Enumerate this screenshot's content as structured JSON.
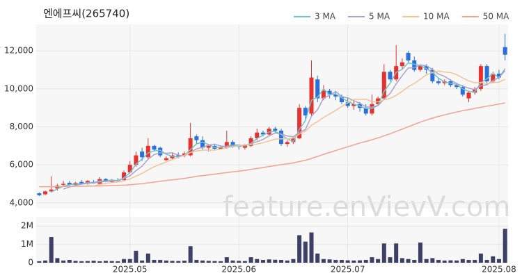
{
  "chart_data": {
    "type": "candlestick",
    "title": "엔에프씨(265740)",
    "watermark": "feature.enVievV.com",
    "up_color": "#e8312e",
    "down_color": "#2a6fdb",
    "categories": [
      null,
      null,
      null,
      null,
      null,
      null,
      null,
      null,
      null,
      null,
      null,
      null,
      null,
      null,
      null,
      "2025.05",
      null,
      null,
      null,
      null,
      null,
      null,
      null,
      null,
      null,
      null,
      null,
      null,
      null,
      null,
      null,
      null,
      null,
      "2025.06",
      null,
      null,
      null,
      null,
      null,
      null,
      null,
      null,
      null,
      null,
      null,
      null,
      null,
      null,
      null,
      null,
      null,
      "2025.07",
      null,
      null,
      null,
      null,
      null,
      null,
      null,
      null,
      null,
      null,
      null,
      null,
      null,
      null,
      null,
      null,
      null,
      null,
      null,
      null,
      null,
      null,
      null,
      null,
      "2025.08",
      null
    ],
    "open": [
      4500,
      4450,
      4600,
      4750,
      4950,
      5050,
      4950,
      5100,
      5000,
      5100,
      5000,
      5250,
      5100,
      5200,
      5200,
      5600,
      6000,
      6700,
      6400,
      7000,
      6900,
      6250,
      6350,
      6500,
      6500,
      6500,
      7500,
      7300,
      6900,
      7000,
      6850,
      6900,
      7200,
      7000,
      6900,
      7000,
      7400,
      7700,
      7600,
      7900,
      7800,
      7100,
      7200,
      7400,
      9000,
      8700,
      10500,
      9500,
      9900,
      9700,
      9600,
      9300,
      9100,
      9200,
      9000,
      8700,
      9200,
      9500,
      10900,
      10500,
      11200,
      11900,
      11500,
      11000,
      11200,
      11000,
      10400,
      10300,
      10400,
      10200,
      10100,
      9500,
      9800,
      10000,
      11200,
      10400,
      10800,
      12200
    ],
    "high": [
      4550,
      4650,
      5400,
      5000,
      5150,
      5150,
      5100,
      5200,
      5200,
      5200,
      5350,
      5300,
      5250,
      5300,
      5700,
      6200,
      6700,
      6900,
      7400,
      7050,
      6950,
      6450,
      6600,
      6650,
      6700,
      8200,
      7600,
      7500,
      7100,
      7100,
      7000,
      7800,
      7300,
      7050,
      7100,
      7500,
      7900,
      7800,
      8000,
      8000,
      7900,
      7300,
      7500,
      9200,
      9100,
      11500,
      10700,
      10200,
      10000,
      9900,
      9700,
      9500,
      9400,
      9300,
      9200,
      9700,
      9600,
      11300,
      11000,
      12300,
      11600,
      12000,
      11700,
      11300,
      11300,
      11100,
      10600,
      10500,
      10500,
      10300,
      10200,
      9900,
      10100,
      11300,
      11300,
      10900,
      11000,
      12900
    ],
    "low": [
      4350,
      4400,
      4550,
      4650,
      4850,
      4900,
      4900,
      5000,
      4950,
      5000,
      4950,
      5100,
      5050,
      5100,
      5150,
      5550,
      5900,
      6200,
      6300,
      6700,
      6400,
      6200,
      6300,
      6350,
      6400,
      6450,
      7100,
      6800,
      6700,
      6750,
      6800,
      6850,
      6900,
      6800,
      6800,
      6950,
      7300,
      7500,
      7550,
      7700,
      7000,
      6950,
      7100,
      7350,
      8400,
      8600,
      9300,
      9400,
      9500,
      9400,
      9200,
      9000,
      8900,
      8800,
      8600,
      8600,
      9100,
      9400,
      10400,
      10400,
      11000,
      11400,
      10900,
      10900,
      10800,
      10300,
      10200,
      10200,
      10100,
      10000,
      9600,
      9300,
      9700,
      9900,
      10300,
      10300,
      10500,
      11500
    ],
    "close": [
      4400,
      4600,
      4700,
      4900,
      5000,
      4950,
      5050,
      5000,
      5150,
      5050,
      5250,
      5150,
      5200,
      5150,
      5600,
      6000,
      6500,
      6400,
      7000,
      6800,
      6500,
      6350,
      6500,
      6400,
      6600,
      7400,
      7300,
      6900,
      7000,
      6850,
      6900,
      7200,
      7000,
      6950,
      7050,
      7400,
      7700,
      7600,
      7900,
      7800,
      7100,
      7200,
      7400,
      9000,
      8600,
      10600,
      9500,
      9900,
      9700,
      9600,
      9300,
      9100,
      9200,
      9000,
      8700,
      9200,
      9500,
      10900,
      10500,
      11200,
      11400,
      11500,
      11000,
      11200,
      11000,
      10400,
      10300,
      10400,
      10200,
      10100,
      9700,
      9800,
      10000,
      11200,
      10400,
      10800,
      10600,
      11800
    ],
    "ylim": [
      3700,
      13400
    ],
    "yticks": [
      {
        "value": 4000,
        "label": "4,000"
      },
      {
        "value": 6000,
        "label": "6,000"
      },
      {
        "value": 8000,
        "label": "8,000"
      },
      {
        "value": 10000,
        "label": "10,000"
      },
      {
        "value": 12000,
        "label": "12,000"
      }
    ],
    "series": [
      {
        "name": "3 MA",
        "color": "#6cc5c8",
        "values": [
          null,
          null,
          4567,
          4733,
          4867,
          4950,
          5000,
          5000,
          5067,
          5067,
          5150,
          5150,
          5200,
          5167,
          5317,
          5583,
          6033,
          6300,
          6633,
          6733,
          6767,
          6550,
          6450,
          6417,
          6500,
          6800,
          7100,
          7200,
          7067,
          6917,
          6917,
          6983,
          7033,
          7050,
          7000,
          7133,
          7383,
          7567,
          7733,
          7767,
          7600,
          7367,
          7233,
          7867,
          8333,
          9400,
          9567,
          10000,
          9700,
          9733,
          9533,
          9333,
          9200,
          9100,
          8967,
          8967,
          9133,
          9867,
          10300,
          10867,
          11033,
          11367,
          11300,
          11233,
          11067,
          10867,
          10567,
          10367,
          10300,
          10233,
          10000,
          9867,
          9833,
          10333,
          10533,
          10800,
          10600,
          11067
        ]
      },
      {
        "name": "5 MA",
        "color": "#ad9fcf",
        "values": [
          null,
          null,
          null,
          null,
          4720,
          4830,
          4920,
          4980,
          5030,
          5040,
          5100,
          5120,
          5160,
          5160,
          5270,
          5420,
          5690,
          5930,
          6300,
          6540,
          6640,
          6610,
          6630,
          6510,
          6470,
          6650,
          6840,
          6920,
          7040,
          7090,
          6990,
          6970,
          6990,
          6980,
          7020,
          7120,
          7220,
          7340,
          7530,
          7680,
          7620,
          7520,
          7480,
          7700,
          7860,
          8560,
          8900,
          9520,
          9660,
          9860,
          9600,
          9520,
          9380,
          9240,
          9060,
          9040,
          9120,
          9460,
          9760,
          10260,
          10700,
          11100,
          11120,
          11260,
          11220,
          11020,
          10780,
          10660,
          10460,
          10280,
          10140,
          10040,
          9960,
          10160,
          10220,
          10440,
          10600,
          10960
        ]
      },
      {
        "name": "10 MA",
        "color": "#f2c493",
        "values": [
          null,
          null,
          null,
          null,
          null,
          null,
          null,
          null,
          null,
          4880,
          4965,
          5020,
          5070,
          5095,
          5155,
          5260,
          5405,
          5545,
          5730,
          5905,
          6030,
          6150,
          6280,
          6405,
          6505,
          6645,
          6725,
          6775,
          6775,
          6780,
          6820,
          6905,
          6955,
          7010,
          7055,
          7055,
          7095,
          7165,
          7255,
          7350,
          7370,
          7370,
          7410,
          7615,
          7770,
          8090,
          8270,
          8500,
          8680,
          8860,
          9080,
          9270,
          9450,
          9450,
          9460,
          9320,
          9320,
          9420,
          9500,
          9660,
          9870,
          10110,
          10290,
          10510,
          10740,
          10860,
          10940,
          10890,
          10860,
          10750,
          10580,
          10420,
          10320,
          10340,
          10280,
          10330,
          10360,
          10500
        ]
      },
      {
        "name": "50 MA",
        "color": "#f4a28e",
        "values": [
          4850,
          4850,
          4850,
          4850,
          4860,
          4860,
          4870,
          4870,
          4880,
          4880,
          4890,
          4900,
          4910,
          4920,
          4930,
          4950,
          4980,
          5010,
          5050,
          5090,
          5130,
          5170,
          5210,
          5250,
          5290,
          5340,
          5390,
          5430,
          5470,
          5510,
          5550,
          5590,
          5630,
          5670,
          5710,
          5760,
          5810,
          5860,
          5910,
          5960,
          6010,
          6050,
          6100,
          6170,
          6240,
          6340,
          6440,
          6550,
          6650,
          6750,
          6850,
          6950,
          7050,
          7150,
          7230,
          7320,
          7420,
          7530,
          7640,
          7760,
          7880,
          8010,
          8130,
          8250,
          8360,
          8460,
          8550,
          8630,
          8710,
          8780,
          8850,
          8910,
          8970,
          9030,
          9090,
          9140,
          9200,
          9260
        ]
      }
    ],
    "volume": {
      "color": "#3d4066",
      "ylim": [
        0,
        2500000
      ],
      "yticks": [
        {
          "value": 0,
          "label": "0"
        },
        {
          "value": 1000000,
          "label": "1M"
        },
        {
          "value": 2000000,
          "label": "2M"
        }
      ],
      "values": [
        80000,
        120000,
        1400000,
        250000,
        120000,
        150000,
        100000,
        80000,
        90000,
        110000,
        80000,
        100000,
        90000,
        80000,
        200000,
        200000,
        650000,
        120000,
        500000,
        150000,
        150000,
        120000,
        100000,
        90000,
        110000,
        900000,
        150000,
        120000,
        100000,
        90000,
        80000,
        300000,
        120000,
        100000,
        90000,
        300000,
        200000,
        150000,
        180000,
        160000,
        150000,
        120000,
        200000,
        1500000,
        1150000,
        1650000,
        500000,
        200000,
        180000,
        150000,
        150000,
        130000,
        120000,
        130000,
        150000,
        300000,
        200000,
        1050000,
        300000,
        1050000,
        250000,
        200000,
        150000,
        1100000,
        200000,
        250000,
        150000,
        120000,
        130000,
        120000,
        200000,
        150000,
        150000,
        500000,
        150000,
        350000,
        200000,
        1850000
      ]
    }
  }
}
